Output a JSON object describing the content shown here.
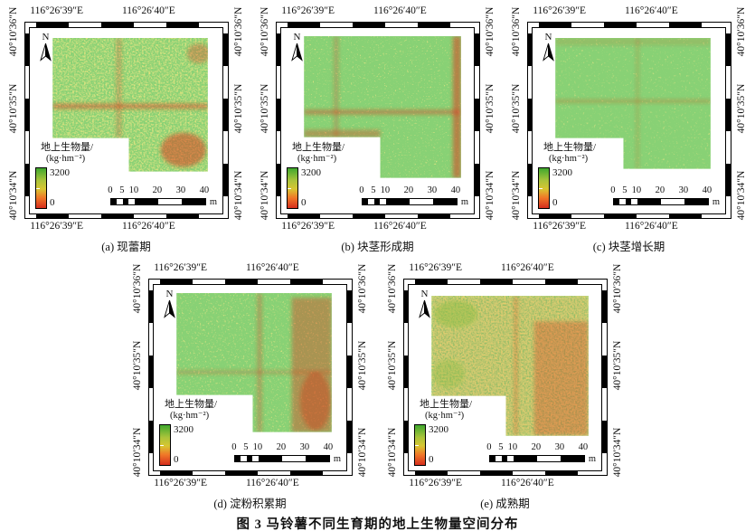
{
  "figure": {
    "caption": "图 3  马铃薯不同生育期的地上生物量空间分布",
    "north_label": "N",
    "lon_labels": [
      "116°26′39″E",
      "116°26′40″E"
    ],
    "lat_labels": [
      "40°10′36″N",
      "40°10′35″N",
      "40°10′34″N"
    ],
    "legend": {
      "title_line1": "地上生物量/",
      "title_line2": "(kg·hm⁻²)",
      "max": "3200",
      "min": "0"
    },
    "scalebar": {
      "ticks": [
        "0",
        "5",
        "10",
        "20",
        "30",
        "40"
      ],
      "unit": "m"
    },
    "colors": {
      "ramp_high_green": "#3fa82e",
      "ramp_yellow_green": "#a8c33a",
      "ramp_yellow": "#d8c632",
      "ramp_orange": "#f07828",
      "ramp_low_red": "#d62e1e"
    },
    "panels": [
      {
        "id": "a",
        "label": "(a) 现蕾期"
      },
      {
        "id": "b",
        "label": "(b) 块茎形成期"
      },
      {
        "id": "c",
        "label": "(c) 块茎增长期"
      },
      {
        "id": "d",
        "label": "(d) 淀粉积累期"
      },
      {
        "id": "e",
        "label": "(e) 成熟期"
      }
    ]
  }
}
